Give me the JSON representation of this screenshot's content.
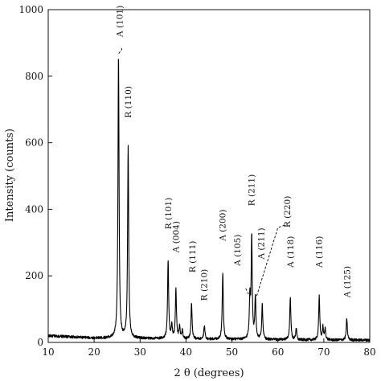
{
  "chart_data": {
    "type": "line",
    "title": "",
    "xlabel": "2 θ  (degrees)",
    "ylabel": "Intensity (counts)",
    "xlim": [
      10,
      80
    ],
    "ylim": [
      0,
      1000
    ],
    "xticks": [
      10,
      20,
      30,
      40,
      50,
      60,
      70,
      80
    ],
    "yticks": [
      0,
      200,
      400,
      600,
      800,
      1000
    ],
    "grid": false,
    "series": [
      {
        "peaks": [
          {
            "x": 25.3,
            "y": 865
          },
          {
            "x": 27.4,
            "y": 585
          },
          {
            "x": 36.1,
            "y": 245
          },
          {
            "x": 36.9,
            "y": 50
          },
          {
            "x": 37.8,
            "y": 158
          },
          {
            "x": 38.6,
            "y": 48
          },
          {
            "x": 39.2,
            "y": 35
          },
          {
            "x": 41.2,
            "y": 118
          },
          {
            "x": 44.0,
            "y": 50
          },
          {
            "x": 48.0,
            "y": 210
          },
          {
            "x": 53.9,
            "y": 130
          },
          {
            "x": 54.3,
            "y": 312
          },
          {
            "x": 55.1,
            "y": 135
          },
          {
            "x": 56.6,
            "y": 112
          },
          {
            "x": 62.7,
            "y": 135
          },
          {
            "x": 64.0,
            "y": 42
          },
          {
            "x": 69.0,
            "y": 138
          },
          {
            "x": 69.8,
            "y": 45
          },
          {
            "x": 70.3,
            "y": 40
          },
          {
            "x": 75.0,
            "y": 72
          }
        ],
        "baseline": [
          {
            "x": 10,
            "y": 20
          },
          {
            "x": 20,
            "y": 13
          },
          {
            "x": 30,
            "y": 12
          },
          {
            "x": 40,
            "y": 10
          },
          {
            "x": 50,
            "y": 9
          },
          {
            "x": 60,
            "y": 8
          },
          {
            "x": 70,
            "y": 7
          },
          {
            "x": 80,
            "y": 7
          }
        ]
      }
    ],
    "annotations": [
      {
        "text": "A (101)",
        "x": 26.2,
        "y": 918,
        "leader": [
          {
            "x": 25.35,
            "y": 868
          },
          {
            "x": 26.0,
            "y": 880
          },
          {
            "x": 26.0,
            "y": 888
          }
        ]
      },
      {
        "text": "R (110)",
        "x": 28.0,
        "y": 675
      },
      {
        "text": "R (101)",
        "x": 36.8,
        "y": 340
      },
      {
        "text": "A (004)",
        "x": 38.4,
        "y": 270
      },
      {
        "text": "R (111)",
        "x": 42.0,
        "y": 210
      },
      {
        "text": "R (210)",
        "x": 44.6,
        "y": 125
      },
      {
        "text": "A (200)",
        "x": 48.6,
        "y": 305
      },
      {
        "text": "A (105)",
        "x": 51.8,
        "y": 230,
        "leader": [
          {
            "x": 53.0,
            "y": 162
          },
          {
            "x": 54.0,
            "y": 135
          }
        ]
      },
      {
        "text": "R (211)",
        "x": 54.9,
        "y": 410
      },
      {
        "text": "A (211)",
        "x": 57.0,
        "y": 250
      },
      {
        "text": "R (220)",
        "x": 62.7,
        "y": 345,
        "leader": [
          {
            "x": 55.4,
            "y": 140
          },
          {
            "x": 60.0,
            "y": 345
          },
          {
            "x": 62.0,
            "y": 355
          }
        ]
      },
      {
        "text": "A (118)",
        "x": 63.4,
        "y": 225
      },
      {
        "text": "A (116)",
        "x": 69.6,
        "y": 225
      },
      {
        "text": "A (125)",
        "x": 75.7,
        "y": 135
      }
    ]
  }
}
